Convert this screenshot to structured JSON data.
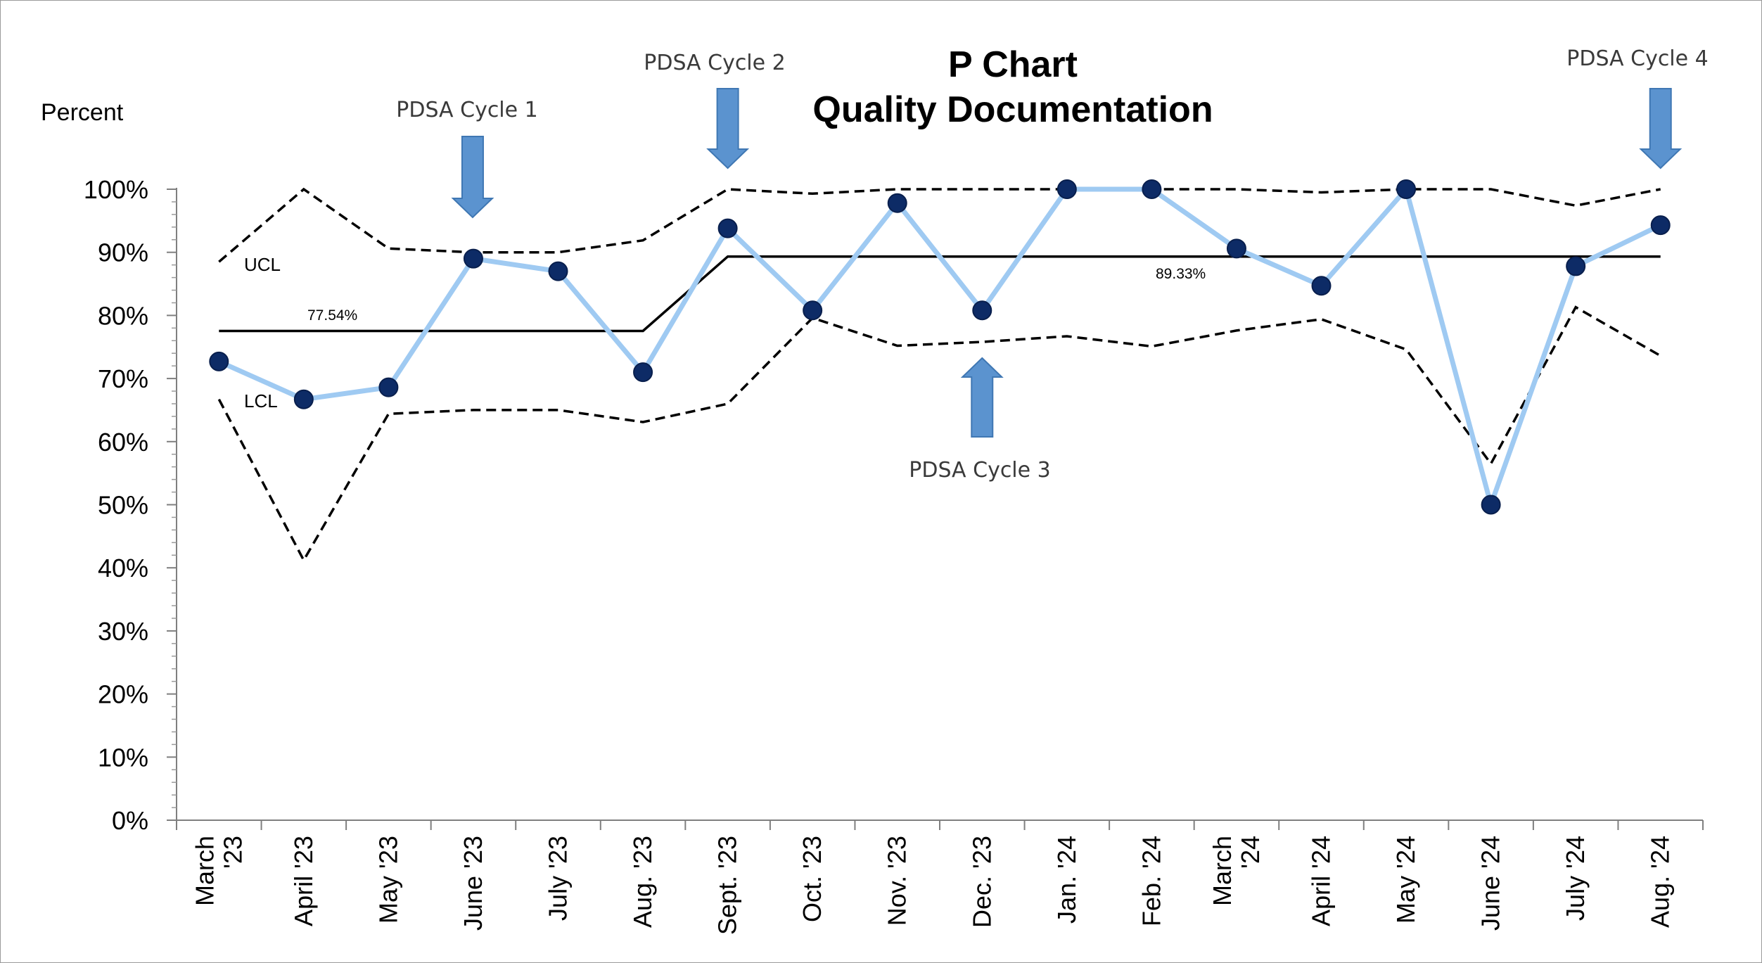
{
  "chart_data": {
    "type": "line",
    "title_lines": [
      "P Chart",
      "Quality Documentation"
    ],
    "ylabel": "Percent",
    "ylim": [
      0,
      100
    ],
    "y_ticks": [
      "0%",
      "10%",
      "20%",
      "30%",
      "40%",
      "50%",
      "60%",
      "70%",
      "80%",
      "90%",
      "100%"
    ],
    "categories": [
      "March\n'23",
      "April '23",
      "May '23",
      "June '23",
      "July '23",
      "Aug. '23",
      "Sept. '23",
      "Oct. '23",
      "Nov. '23",
      "Dec. '23",
      "Jan. '24",
      "Feb. '24",
      "March\n'24",
      "April '24",
      "May '24",
      "June '24",
      "July '24",
      "Aug. '24"
    ],
    "series": [
      {
        "key": "percent",
        "color": "#9fcaf2",
        "marker_color": "#0d2b66",
        "values": [
          72.7,
          66.7,
          68.6,
          89.0,
          87.0,
          71.0,
          93.8,
          80.8,
          97.8,
          80.8,
          100,
          100,
          90.6,
          84.7,
          100,
          50.0,
          87.8,
          94.3
        ]
      },
      {
        "key": "centerline",
        "color": "#000000",
        "values": [
          77.54,
          77.54,
          77.54,
          77.54,
          77.54,
          77.54,
          89.33,
          89.33,
          89.33,
          89.33,
          89.33,
          89.33,
          89.33,
          89.33,
          89.33,
          89.33,
          89.33,
          89.33
        ]
      },
      {
        "key": "ucl",
        "color": "#000000",
        "values": [
          88.5,
          100,
          90.6,
          90.0,
          90.0,
          91.9,
          100,
          99.3,
          100,
          100,
          100,
          100,
          100,
          99.5,
          100,
          100,
          97.4,
          100
        ]
      },
      {
        "key": "lcl",
        "color": "#000000",
        "values": [
          66.7,
          41.2,
          64.4,
          65.0,
          65.0,
          63.1,
          66.0,
          79.6,
          75.2,
          75.8,
          76.7,
          75.1,
          77.6,
          79.4,
          74.6,
          56.5,
          81.3,
          73.6
        ]
      }
    ],
    "annotations": {
      "ucl_label": "UCL",
      "lcl_label": "LCL",
      "cl_label_1": "77.54%",
      "cl_label_2": "89.33%",
      "pdsa": [
        {
          "text": "PDSA Cycle 1",
          "index": 3,
          "direction": "down"
        },
        {
          "text": "PDSA Cycle 2",
          "index": 6,
          "direction": "down"
        },
        {
          "text": "PDSA Cycle 3",
          "index": 9,
          "direction": "up"
        },
        {
          "text": "PDSA Cycle 4",
          "index": 17,
          "direction": "down"
        }
      ]
    },
    "arrow_color": "#5b93cf",
    "grid": false,
    "legend": "none"
  }
}
